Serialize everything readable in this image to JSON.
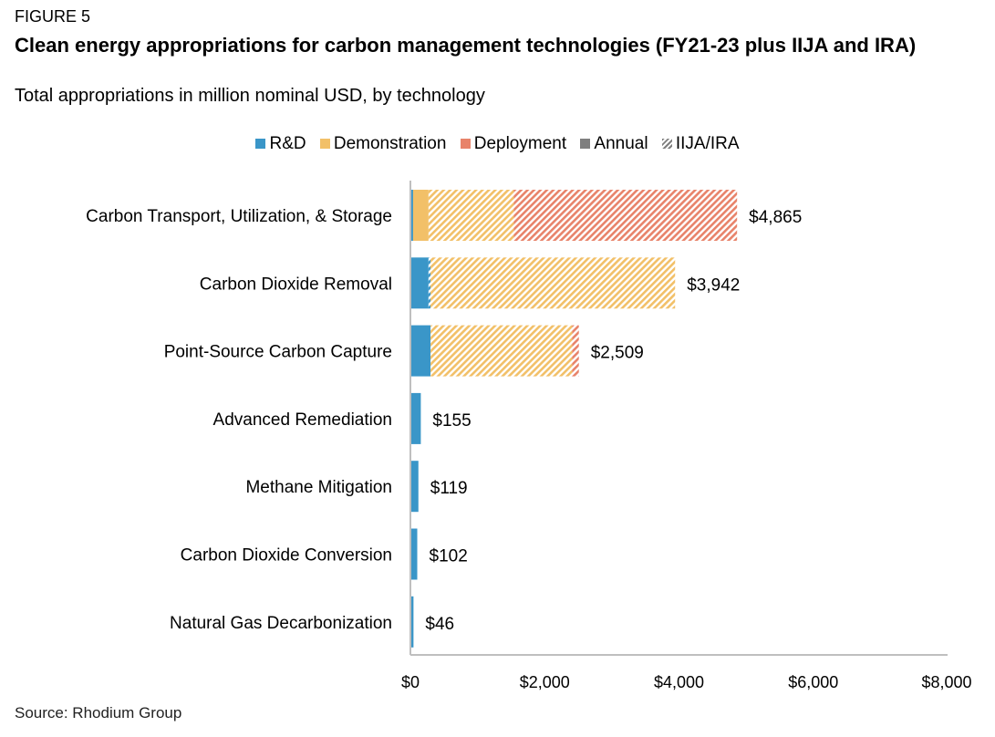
{
  "figure_label": "FIGURE 5",
  "source": "Source: Rhodium Group",
  "legend": [
    {
      "key": "rd",
      "label": "R&D"
    },
    {
      "key": "demo",
      "label": "Demonstration"
    },
    {
      "key": "dep",
      "label": "Deployment"
    },
    {
      "key": "annual",
      "label": "Annual"
    },
    {
      "key": "iija",
      "label": "IIJA/IRA"
    }
  ],
  "colors": {
    "rd": "#3a96c8",
    "demo": "#f2c068",
    "dep": "#e8836a",
    "annual": "#7f7f7f",
    "axis": "#bfbfbf"
  },
  "chart_data": {
    "type": "bar",
    "orientation": "horizontal",
    "stacked": true,
    "title": "Clean energy appropriations for carbon management technologies (FY21-23 plus IIJA and IRA)",
    "subtitle": "Total appropriations in million nominal USD, by technology",
    "xlabel": "",
    "ylabel": "",
    "xlim": [
      0,
      8000
    ],
    "xticks": [
      0,
      2000,
      4000,
      6000,
      8000
    ],
    "xtick_labels": [
      "$0",
      "$2,000",
      "$4,000",
      "$6,000",
      "$8,000"
    ],
    "grid": false,
    "legend_position": "top",
    "categories": [
      "Carbon Transport, Utilization, & Storage",
      "Carbon Dioxide Removal",
      "Point-Source Carbon Capture",
      "Advanced Remediation",
      "Methane Mitigation",
      "Carbon Dioxide Conversion",
      "Natural Gas Decarbonization"
    ],
    "totals": [
      4865,
      3942,
      2509,
      155,
      119,
      102,
      46
    ],
    "total_labels": [
      "$4,865",
      "$3,942",
      "$2,509",
      "$155",
      "$119",
      "$102",
      "$46"
    ],
    "segments": [
      [
        {
          "series": "rd",
          "funding": "annual",
          "value": 40
        },
        {
          "series": "demo",
          "funding": "annual",
          "value": 230
        },
        {
          "series": "demo",
          "funding": "iija",
          "value": 1270
        },
        {
          "series": "dep",
          "funding": "iija",
          "value": 3325
        }
      ],
      [
        {
          "series": "rd",
          "funding": "annual",
          "value": 270
        },
        {
          "series": "rd",
          "funding": "iija",
          "value": 30
        },
        {
          "series": "demo",
          "funding": "iija",
          "value": 3642
        }
      ],
      [
        {
          "series": "rd",
          "funding": "annual",
          "value": 300
        },
        {
          "series": "demo",
          "funding": "iija",
          "value": 2109
        },
        {
          "series": "dep",
          "funding": "iija",
          "value": 100
        }
      ],
      [
        {
          "series": "rd",
          "funding": "annual",
          "value": 155
        }
      ],
      [
        {
          "series": "rd",
          "funding": "annual",
          "value": 119
        }
      ],
      [
        {
          "series": "rd",
          "funding": "annual",
          "value": 102
        }
      ],
      [
        {
          "series": "rd",
          "funding": "annual",
          "value": 46
        }
      ]
    ]
  }
}
